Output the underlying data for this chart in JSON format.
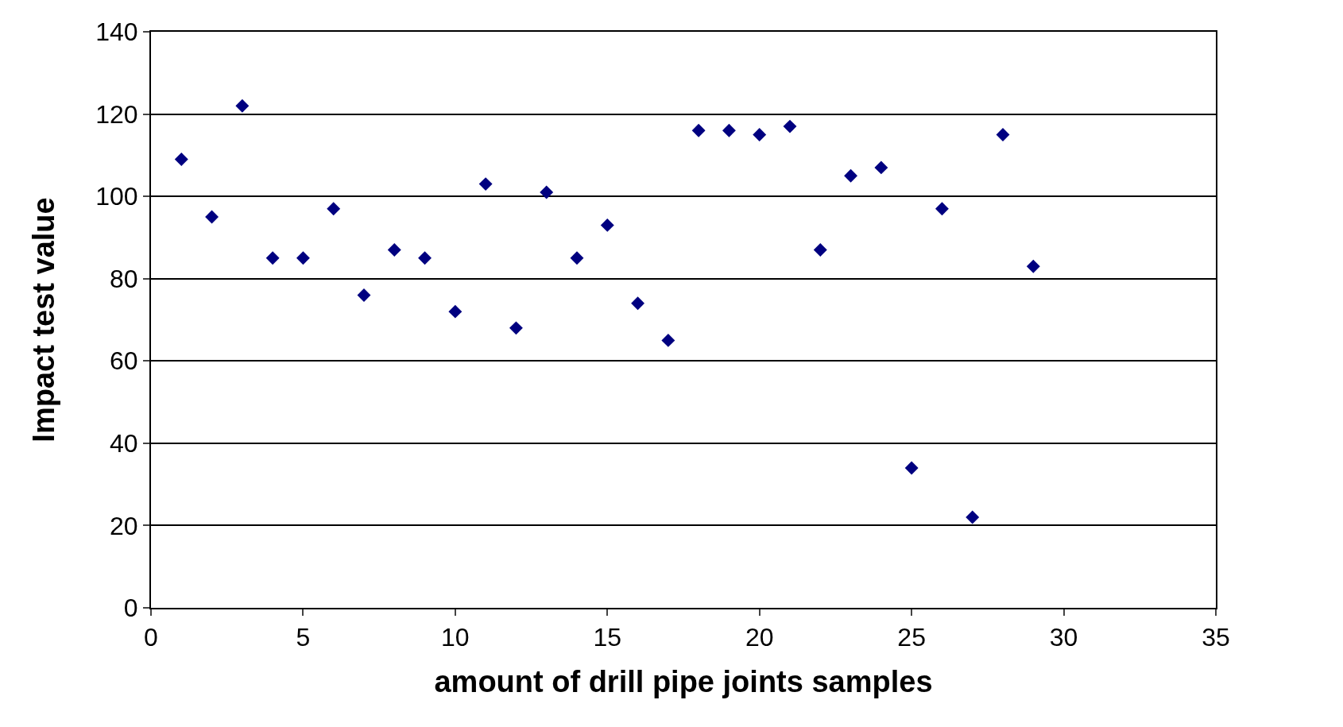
{
  "chart_data": {
    "type": "scatter",
    "xlabel": "amount of drill pipe joints samples",
    "ylabel": "Impact test value",
    "x": [
      1,
      2,
      3,
      4,
      5,
      6,
      7,
      8,
      9,
      10,
      11,
      12,
      13,
      14,
      15,
      16,
      17,
      18,
      19,
      20,
      21,
      22,
      23,
      24,
      25,
      26,
      27,
      28,
      29
    ],
    "series": [
      {
        "color": "#000080",
        "values": [
          109,
          95,
          122,
          85,
          85,
          97,
          76,
          87,
          85,
          72,
          103,
          68,
          101,
          85,
          93,
          74,
          65,
          116,
          116,
          115,
          117,
          87,
          105,
          107,
          34,
          97,
          22,
          115,
          83
        ]
      }
    ],
    "xlim": [
      0,
      35
    ],
    "xticks": [
      0,
      5,
      10,
      15,
      20,
      25,
      30,
      35
    ],
    "ylim": [
      0,
      140
    ],
    "yticks": [
      0,
      20,
      40,
      60,
      80,
      100,
      120,
      140
    ],
    "grid": "y",
    "marker": "diamond"
  }
}
